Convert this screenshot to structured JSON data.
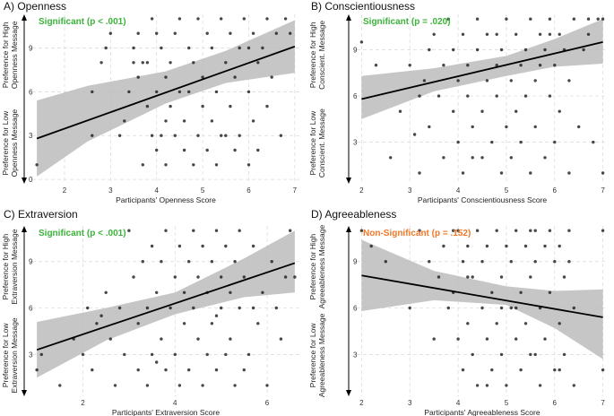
{
  "colors": {
    "significant": "#3bb33b",
    "non_significant": "#f07828",
    "band": "#bcbcbc",
    "point": "#1a1a1a",
    "line": "#000000"
  },
  "chart_data": [
    {
      "type": "scatter",
      "title": "A) Openness",
      "annotation": "Significant (p < .001)",
      "significant": true,
      "xlabel": "Participants' Openness Score",
      "ylabel_high": [
        "Preference for High",
        "Openness Message"
      ],
      "ylabel_low": [
        "Preference for Low",
        "Openness Message"
      ],
      "xlim": [
        1.3,
        7.1
      ],
      "ylim": [
        -0.3,
        11.3
      ],
      "xticks": [
        2,
        3,
        4,
        5,
        6,
        7
      ],
      "yticks": [
        0,
        3,
        6,
        9
      ],
      "regression": {
        "x0": 1.4,
        "x1": 7.0,
        "y0": 2.8,
        "y1": 9.1
      },
      "ci": {
        "x": [
          1.4,
          2.5,
          4.2,
          5.5,
          7.0
        ],
        "lower": [
          0.2,
          2.6,
          5.2,
          6.6,
          7.3
        ],
        "upper": [
          5.4,
          6.4,
          7.4,
          8.8,
          10.9
        ]
      },
      "points": [
        [
          1.4,
          1
        ],
        [
          2.6,
          6
        ],
        [
          2.6,
          3
        ],
        [
          2.8,
          8
        ],
        [
          2.9,
          9
        ],
        [
          3.0,
          10
        ],
        [
          3.2,
          3
        ],
        [
          3.3,
          4
        ],
        [
          3.4,
          6
        ],
        [
          3.5,
          8
        ],
        [
          3.5,
          9
        ],
        [
          3.6,
          7
        ],
        [
          3.6,
          10
        ],
        [
          3.7,
          1
        ],
        [
          3.8,
          5
        ],
        [
          3.8,
          8
        ],
        [
          3.9,
          3
        ],
        [
          3.9,
          11
        ],
        [
          4.0,
          2
        ],
        [
          4.0,
          10
        ],
        [
          4.0,
          6
        ],
        [
          4.1,
          3
        ],
        [
          4.1,
          9
        ],
        [
          4.2,
          1
        ],
        [
          4.2,
          7
        ],
        [
          4.3,
          8
        ],
        [
          4.3,
          5
        ],
        [
          4.4,
          10
        ],
        [
          4.4,
          3
        ],
        [
          4.5,
          6
        ],
        [
          4.5,
          11
        ],
        [
          4.6,
          4
        ],
        [
          4.6,
          2
        ],
        [
          4.7,
          9
        ],
        [
          4.7,
          6
        ],
        [
          4.8,
          1
        ],
        [
          4.8,
          8
        ],
        [
          4.9,
          3
        ],
        [
          4.9,
          11
        ],
        [
          5.0,
          5
        ],
        [
          5.0,
          7
        ],
        [
          5.1,
          10
        ],
        [
          5.1,
          2
        ],
        [
          5.2,
          4
        ],
        [
          5.2,
          9
        ],
        [
          5.3,
          6
        ],
        [
          5.3,
          1
        ],
        [
          5.4,
          11
        ],
        [
          5.4,
          3
        ],
        [
          5.5,
          8
        ],
        [
          5.6,
          5
        ],
        [
          5.6,
          10
        ],
        [
          5.7,
          2
        ],
        [
          5.7,
          7
        ],
        [
          5.8,
          9
        ],
        [
          5.8,
          3
        ],
        [
          5.9,
          11
        ],
        [
          6.0,
          6
        ],
        [
          6.0,
          1
        ],
        [
          6.1,
          4
        ],
        [
          6.1,
          10
        ],
        [
          6.2,
          8
        ],
        [
          6.2,
          2
        ],
        [
          6.3,
          9
        ],
        [
          6.4,
          11
        ],
        [
          6.4,
          5
        ],
        [
          6.5,
          7
        ],
        [
          6.6,
          10
        ],
        [
          6.7,
          3
        ],
        [
          6.8,
          11
        ],
        [
          6.9,
          10
        ],
        [
          6.0,
          9
        ],
        [
          5.5,
          3
        ],
        [
          4.2,
          4
        ],
        [
          3.7,
          8
        ]
      ]
    },
    {
      "type": "scatter",
      "title": "B) Conscientiousness",
      "annotation": "Significant (p = .020)",
      "significant": true,
      "xlabel": "Participants' Conscientiousness Score",
      "ylabel_high": [
        "Preference for High",
        "Conscient. Message"
      ],
      "ylabel_low": [
        "Preference for Low",
        "Conscient. Message"
      ],
      "xlim": [
        1.9,
        7.1
      ],
      "ylim": [
        0.3,
        11.3
      ],
      "xticks": [
        2,
        3,
        4,
        5,
        6,
        7
      ],
      "yticks": [
        3,
        6,
        9
      ],
      "regression": {
        "x0": 2.0,
        "x1": 7.0,
        "y0": 5.8,
        "y1": 9.5
      },
      "ci": {
        "x": [
          2.0,
          3.5,
          5.0,
          6.0,
          7.0
        ],
        "lower": [
          4.5,
          6.3,
          7.3,
          7.9,
          8.1
        ],
        "upper": [
          7.3,
          7.8,
          8.6,
          9.7,
          11.0
        ]
      },
      "points": [
        [
          2.0,
          9.5
        ],
        [
          2.3,
          8
        ],
        [
          2.6,
          2
        ],
        [
          2.8,
          5
        ],
        [
          3.0,
          8
        ],
        [
          3.1,
          3.5
        ],
        [
          3.2,
          1
        ],
        [
          3.3,
          7
        ],
        [
          3.4,
          9
        ],
        [
          3.4,
          4
        ],
        [
          3.5,
          10
        ],
        [
          3.6,
          6
        ],
        [
          3.7,
          2
        ],
        [
          3.7,
          8
        ],
        [
          3.8,
          11
        ],
        [
          3.9,
          5
        ],
        [
          3.9,
          9
        ],
        [
          4.0,
          3
        ],
        [
          4.0,
          7
        ],
        [
          4.1,
          10
        ],
        [
          4.1,
          1
        ],
        [
          4.2,
          6
        ],
        [
          4.2,
          8
        ],
        [
          4.3,
          4
        ],
        [
          4.4,
          9
        ],
        [
          4.4,
          11
        ],
        [
          4.5,
          5
        ],
        [
          4.5,
          2
        ],
        [
          4.6,
          7
        ],
        [
          4.6,
          10
        ],
        [
          4.7,
          3
        ],
        [
          4.8,
          8
        ],
        [
          4.8,
          6
        ],
        [
          4.9,
          9
        ],
        [
          4.9,
          1
        ],
        [
          5.0,
          11
        ],
        [
          5.0,
          4
        ],
        [
          5.1,
          7
        ],
        [
          5.1,
          2
        ],
        [
          5.2,
          10
        ],
        [
          5.2,
          5
        ],
        [
          5.3,
          8
        ],
        [
          5.3,
          3
        ],
        [
          5.4,
          9
        ],
        [
          5.4,
          6
        ],
        [
          5.5,
          11
        ],
        [
          5.5,
          1
        ],
        [
          5.6,
          7
        ],
        [
          5.6,
          4
        ],
        [
          5.7,
          10
        ],
        [
          5.7,
          8
        ],
        [
          5.8,
          2
        ],
        [
          5.8,
          9
        ],
        [
          5.9,
          6
        ],
        [
          5.9,
          11
        ],
        [
          6.0,
          3
        ],
        [
          6.0,
          8
        ],
        [
          6.1,
          10
        ],
        [
          6.1,
          5
        ],
        [
          6.2,
          9
        ],
        [
          6.3,
          1
        ],
        [
          6.3,
          7
        ],
        [
          6.4,
          11
        ],
        [
          6.5,
          4
        ],
        [
          6.6,
          9
        ],
        [
          6.7,
          10
        ],
        [
          6.8,
          3
        ],
        [
          6.9,
          11
        ],
        [
          7.0,
          1
        ],
        [
          7.0,
          11
        ],
        [
          6.7,
          11
        ],
        [
          5.9,
          10
        ],
        [
          4.8,
          10
        ],
        [
          4.3,
          2
        ],
        [
          3.2,
          6
        ]
      ]
    },
    {
      "type": "scatter",
      "title": "C) Extraversion",
      "annotation": "Significant (p < .001)",
      "significant": true,
      "xlabel": "Participants' Extraversion Score",
      "ylabel_high": [
        "Preference for High",
        "Extraversion Message"
      ],
      "ylabel_low": [
        "Preference for Low",
        "Extraversion Message"
      ],
      "xlim": [
        0.9,
        6.7
      ],
      "ylim": [
        0.3,
        11.3
      ],
      "xticks": [
        2,
        4,
        6
      ],
      "yticks": [
        3,
        6,
        9
      ],
      "regression": {
        "x0": 1.0,
        "x1": 6.6,
        "y0": 3.3,
        "y1": 8.9
      },
      "ci": {
        "x": [
          1.0,
          2.5,
          4.0,
          5.5,
          6.6
        ],
        "lower": [
          1.5,
          3.9,
          5.6,
          6.7,
          7.0
        ],
        "upper": [
          5.1,
          6.0,
          7.0,
          9.2,
          11.0
        ]
      },
      "points": [
        [
          1.0,
          2
        ],
        [
          1.1,
          3
        ],
        [
          1.5,
          1
        ],
        [
          1.8,
          4
        ],
        [
          2.0,
          3
        ],
        [
          2.1,
          6
        ],
        [
          2.2,
          2
        ],
        [
          2.3,
          5
        ],
        [
          2.5,
          7
        ],
        [
          2.6,
          4
        ],
        [
          2.7,
          1
        ],
        [
          2.8,
          6
        ],
        [
          2.9,
          3
        ],
        [
          3.0,
          11
        ],
        [
          3.1,
          8
        ],
        [
          3.2,
          2
        ],
        [
          3.2,
          5
        ],
        [
          3.3,
          9
        ],
        [
          3.4,
          6
        ],
        [
          3.4,
          1
        ],
        [
          3.5,
          3
        ],
        [
          3.5,
          10
        ],
        [
          3.6,
          7
        ],
        [
          3.7,
          4
        ],
        [
          3.7,
          9
        ],
        [
          3.8,
          2
        ],
        [
          3.8,
          11
        ],
        [
          3.9,
          6
        ],
        [
          4.0,
          3
        ],
        [
          4.0,
          8
        ],
        [
          4.1,
          10
        ],
        [
          4.1,
          1
        ],
        [
          4.2,
          5
        ],
        [
          4.2,
          7
        ],
        [
          4.3,
          9
        ],
        [
          4.3,
          2
        ],
        [
          4.4,
          11
        ],
        [
          4.4,
          6
        ],
        [
          4.5,
          4
        ],
        [
          4.5,
          8
        ],
        [
          4.6,
          1
        ],
        [
          4.6,
          10
        ],
        [
          4.7,
          3
        ],
        [
          4.7,
          7
        ],
        [
          4.8,
          9
        ],
        [
          4.8,
          5
        ],
        [
          4.9,
          2
        ],
        [
          4.9,
          11
        ],
        [
          5.0,
          6
        ],
        [
          5.0,
          8
        ],
        [
          5.1,
          3
        ],
        [
          5.1,
          10
        ],
        [
          5.2,
          4
        ],
        [
          5.2,
          7
        ],
        [
          5.3,
          1
        ],
        [
          5.3,
          9
        ],
        [
          5.4,
          6
        ],
        [
          5.4,
          11
        ],
        [
          5.5,
          2
        ],
        [
          5.5,
          8
        ],
        [
          5.6,
          3
        ],
        [
          5.7,
          10
        ],
        [
          5.8,
          5
        ],
        [
          5.9,
          7
        ],
        [
          6.0,
          1
        ],
        [
          6.1,
          9
        ],
        [
          6.2,
          6
        ],
        [
          6.3,
          4
        ],
        [
          6.4,
          8
        ],
        [
          6.5,
          11
        ],
        [
          6.6,
          8
        ],
        [
          3.6,
          2.5
        ],
        [
          4.9,
          5.5
        ],
        [
          2.4,
          5.5
        ],
        [
          5.7,
          6
        ]
      ]
    },
    {
      "type": "scatter",
      "title": "D) Agreeableness",
      "annotation": "Non-Significant (p = .152)",
      "significant": false,
      "xlabel": "Participants' Agreeableness Score",
      "ylabel_high": [
        "Preference for High",
        "Agreeableness Message"
      ],
      "ylabel_low": [
        "Preference for Low",
        "Agreeableness Message"
      ],
      "xlim": [
        1.9,
        7.1
      ],
      "ylim": [
        0.3,
        11.3
      ],
      "xticks": [
        2,
        3,
        4,
        5,
        6,
        7
      ],
      "yticks": [
        3,
        6,
        9
      ],
      "regression": {
        "x0": 2.0,
        "x1": 7.0,
        "y0": 8.1,
        "y1": 5.4
      },
      "ci": {
        "x": [
          2.0,
          3.5,
          5.0,
          6.0,
          7.0
        ],
        "lower": [
          5.8,
          6.5,
          6.2,
          4.7,
          2.7
        ],
        "upper": [
          10.4,
          8.4,
          7.4,
          7.1,
          7.2
        ]
      },
      "points": [
        [
          2.0,
          11
        ],
        [
          2.2,
          10
        ],
        [
          2.5,
          9
        ],
        [
          3.0,
          6
        ],
        [
          3.2,
          11
        ],
        [
          3.4,
          9
        ],
        [
          3.5,
          4
        ],
        [
          3.6,
          8
        ],
        [
          3.7,
          10
        ],
        [
          3.8,
          6
        ],
        [
          3.9,
          7
        ],
        [
          4.0,
          11
        ],
        [
          4.0,
          4
        ],
        [
          4.1,
          2
        ],
        [
          4.1,
          9
        ],
        [
          4.2,
          5
        ],
        [
          4.2,
          10
        ],
        [
          4.3,
          8
        ],
        [
          4.3,
          3
        ],
        [
          4.4,
          1
        ],
        [
          4.4,
          11
        ],
        [
          4.5,
          6
        ],
        [
          4.5,
          9
        ],
        [
          4.6,
          4
        ],
        [
          4.6,
          10
        ],
        [
          4.7,
          7
        ],
        [
          4.7,
          2
        ],
        [
          4.8,
          11
        ],
        [
          4.8,
          5
        ],
        [
          4.9,
          8
        ],
        [
          4.9,
          3
        ],
        [
          5.0,
          10
        ],
        [
          5.0,
          1
        ],
        [
          5.1,
          6
        ],
        [
          5.1,
          9
        ],
        [
          5.2,
          11
        ],
        [
          5.2,
          4
        ],
        [
          5.3,
          7
        ],
        [
          5.3,
          2
        ],
        [
          5.4,
          10
        ],
        [
          5.4,
          5
        ],
        [
          5.5,
          8
        ],
        [
          5.5,
          11
        ],
        [
          5.6,
          3
        ],
        [
          5.6,
          9
        ],
        [
          5.7,
          6
        ],
        [
          5.7,
          1
        ],
        [
          5.8,
          10
        ],
        [
          5.8,
          4
        ],
        [
          5.9,
          11
        ],
        [
          5.9,
          7
        ],
        [
          6.0,
          2
        ],
        [
          6.0,
          9
        ],
        [
          6.1,
          5
        ],
        [
          6.1,
          10
        ],
        [
          6.2,
          8
        ],
        [
          6.2,
          3
        ],
        [
          6.3,
          11
        ],
        [
          6.4,
          6
        ],
        [
          6.4,
          1
        ],
        [
          7.0,
          11
        ],
        [
          7.0,
          2
        ],
        [
          6.3,
          9
        ],
        [
          5.6,
          11
        ],
        [
          4.9,
          6
        ],
        [
          4.2,
          8
        ],
        [
          3.9,
          11
        ],
        [
          5.2,
          6
        ],
        [
          6.1,
          2
        ],
        [
          4.6,
          1
        ],
        [
          5.5,
          3
        ]
      ]
    }
  ]
}
